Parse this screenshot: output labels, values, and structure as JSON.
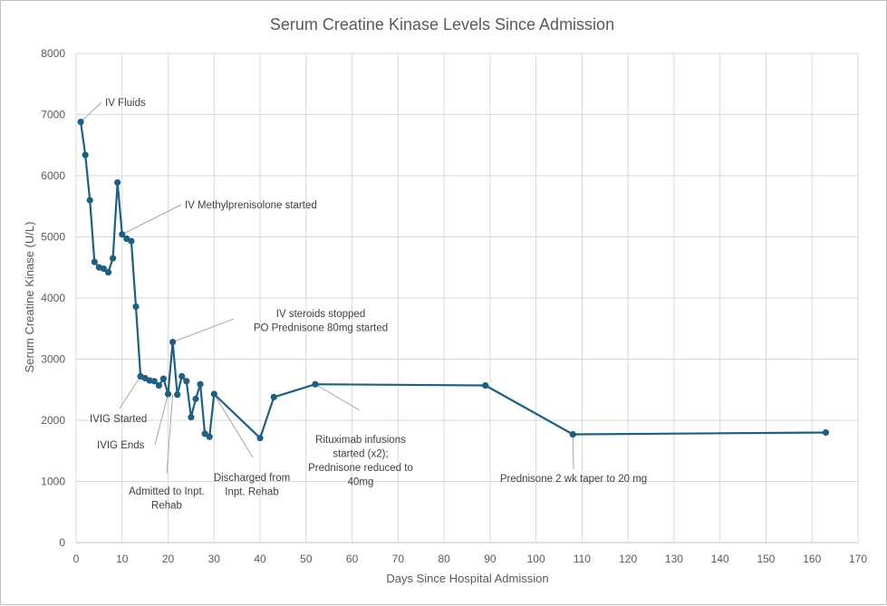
{
  "chart_data": {
    "type": "line",
    "title": "Serum Creatine Kinase Levels Since Admission",
    "xlabel": "Days Since Hospital Admission",
    "ylabel": "Serum Creatine Kinase (U/L)",
    "xlim": [
      0,
      170
    ],
    "ylim": [
      0,
      8000
    ],
    "xticks": [
      0,
      10,
      20,
      30,
      40,
      50,
      60,
      70,
      80,
      90,
      100,
      110,
      120,
      130,
      140,
      150,
      160,
      170
    ],
    "yticks": [
      0,
      1000,
      2000,
      3000,
      4000,
      5000,
      6000,
      7000,
      8000
    ],
    "grid": true,
    "legend": "none",
    "series": [
      {
        "name": "Serum Creatine Kinase",
        "color": "#1f5f7f",
        "x": [
          1,
          2,
          3,
          4,
          5,
          6,
          7,
          8,
          9,
          10,
          11,
          12,
          13,
          14,
          15,
          16,
          17,
          18,
          19,
          20,
          21,
          22,
          23,
          24,
          25,
          26,
          27,
          28,
          29,
          30,
          40,
          43,
          52,
          89,
          108,
          163
        ],
        "y": [
          6880,
          6340,
          5600,
          4590,
          4500,
          4480,
          4420,
          4650,
          5890,
          5040,
          4970,
          4930,
          3860,
          2720,
          2690,
          2650,
          2640,
          2570,
          2680,
          2430,
          3280,
          2420,
          2720,
          2640,
          2050,
          2350,
          2590,
          1780,
          1730,
          2430,
          1710,
          2380,
          2590,
          2570,
          1770,
          1800
        ]
      }
    ],
    "annotations": [
      {
        "lines": [
          "IV Fluids"
        ],
        "x": 1,
        "y": 6880
      },
      {
        "lines": [
          "IV Methylprenisolone started"
        ],
        "x": 10,
        "y": 5040
      },
      {
        "lines": [
          "IV steroids stopped",
          "PO Prednisone 80mg started"
        ],
        "x": 21,
        "y": 3280
      },
      {
        "lines": [
          "IVIG Started"
        ],
        "x": 14,
        "y": 2720
      },
      {
        "lines": [
          "IVIG Ends"
        ],
        "x": 20,
        "y": 2430
      },
      {
        "lines": [
          "Admitted to Inpt.",
          "Rehab"
        ],
        "x": 21,
        "y": 2420
      },
      {
        "lines": [
          "Discharged from",
          "Inpt. Rehab"
        ],
        "x": 30,
        "y": 2430
      },
      {
        "lines": [
          "Rituximab infusions",
          "started (x2);",
          "Prednisone reduced to",
          "40mg"
        ],
        "x": 52,
        "y": 2590
      },
      {
        "lines": [
          "Prednisone 2 wk taper to 20 mg"
        ],
        "x": 108,
        "y": 1770
      }
    ]
  }
}
